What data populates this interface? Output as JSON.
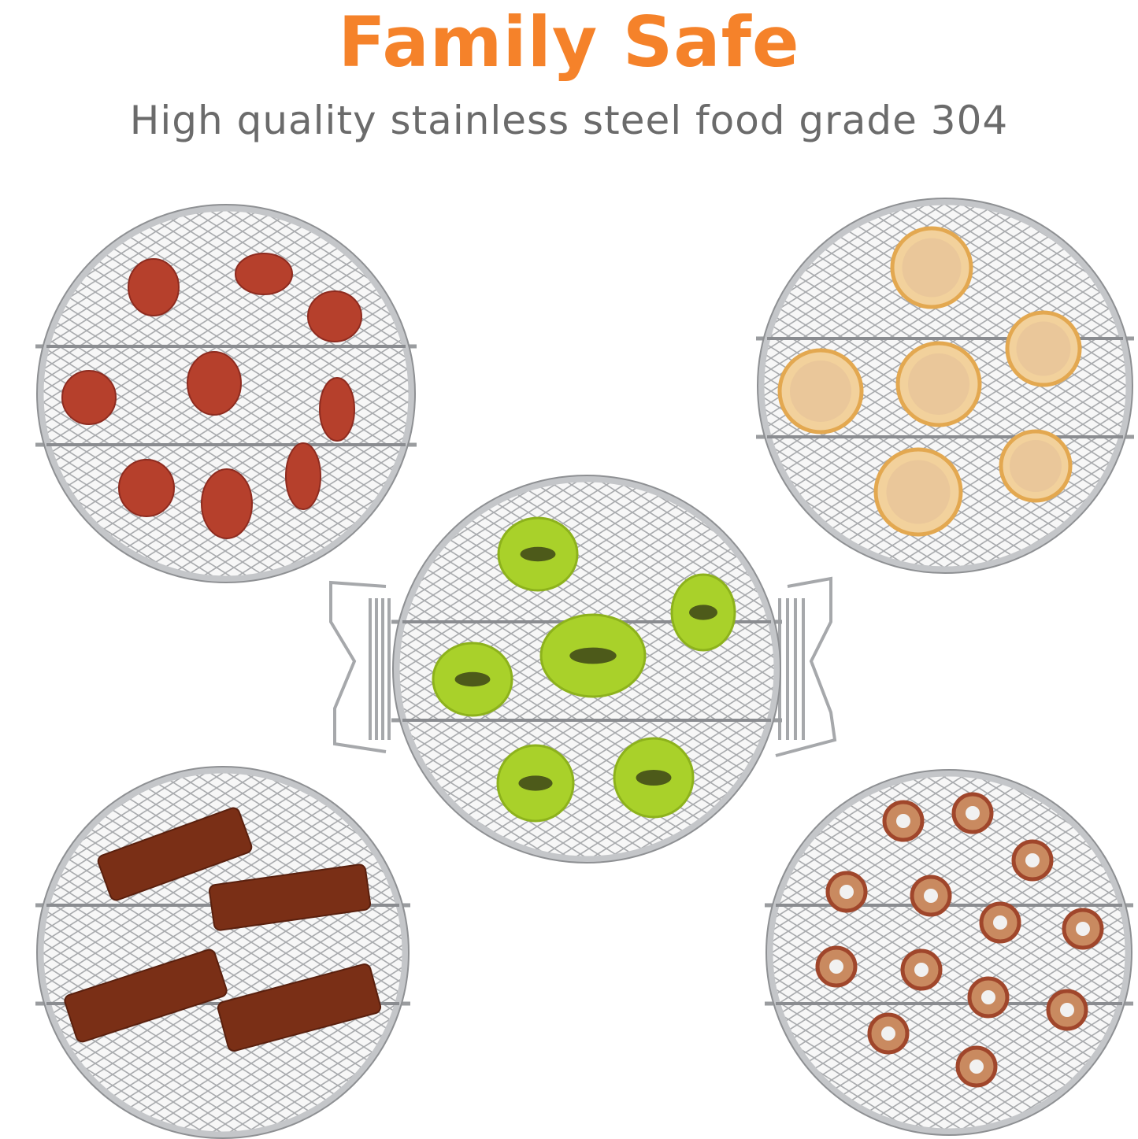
{
  "header": {
    "title": "Family Safe",
    "subtitle": "High quality stainless steel food grade 304"
  },
  "colors": {
    "title": "#f5822a",
    "subtitle": "#6b6b6b",
    "background": "#ffffff"
  },
  "racks": [
    {
      "food": "dried strawberries"
    },
    {
      "food": "dried lemon slices"
    },
    {
      "food": "dried kiwi slices"
    },
    {
      "food": "jerky strips"
    },
    {
      "food": "dried apple rings"
    }
  ]
}
